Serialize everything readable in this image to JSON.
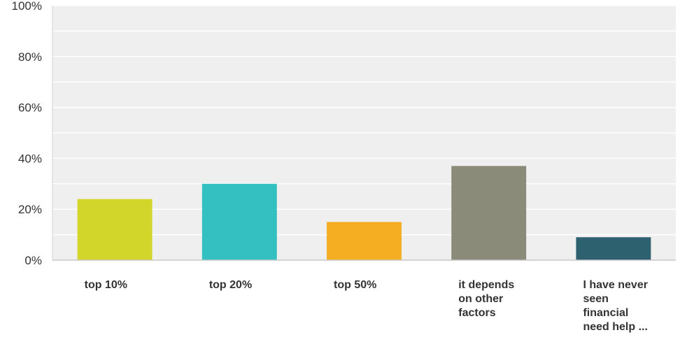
{
  "chart_data": {
    "type": "bar",
    "categories": [
      [
        "top 10%"
      ],
      [
        "top 20%"
      ],
      [
        "top 50%"
      ],
      [
        "it depends",
        "on other",
        "factors"
      ],
      [
        "I have never",
        "seen",
        "financial",
        "need help ..."
      ]
    ],
    "values": [
      24,
      30,
      15,
      37,
      9
    ],
    "colors": [
      "#d2d62a",
      "#34bfc0",
      "#f5ae21",
      "#8a8b79",
      "#2e6170"
    ],
    "ylim": [
      0,
      100
    ],
    "ytick_values": [
      0,
      20,
      40,
      60,
      80,
      100
    ],
    "ytick_labels": [
      "0%",
      "20%",
      "40%",
      "60%",
      "80%",
      "100%"
    ],
    "grid": true,
    "plot_background": "#efefef"
  }
}
